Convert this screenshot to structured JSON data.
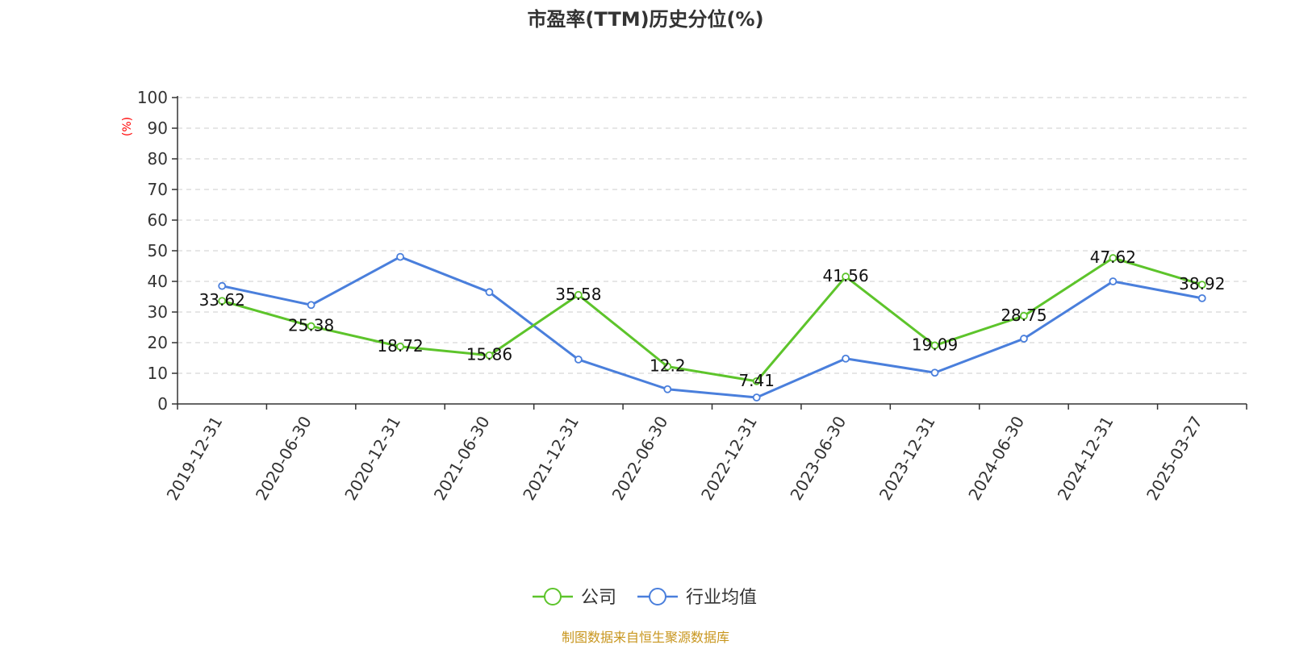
{
  "chart_data": {
    "type": "line",
    "title": "市盈率(TTM)历史分位(%)",
    "ylabel": "(%)",
    "xlabel": "",
    "ylim": [
      0,
      100
    ],
    "yticks": [
      0,
      10,
      20,
      30,
      40,
      50,
      60,
      70,
      80,
      90,
      100
    ],
    "grid": "horizontal dashed",
    "legend_position": "bottom",
    "categories": [
      "2019-12-31",
      "2020-06-30",
      "2020-12-31",
      "2021-06-30",
      "2021-12-31",
      "2022-06-30",
      "2022-12-31",
      "2023-06-30",
      "2023-12-31",
      "2024-06-30",
      "2024-12-31",
      "2025-03-27"
    ],
    "series": [
      {
        "name": "公司",
        "color": "#5dc42b",
        "values": [
          33.62,
          25.38,
          18.72,
          15.86,
          35.58,
          12.2,
          7.41,
          41.56,
          19.09,
          28.75,
          47.62,
          38.92
        ],
        "labels": [
          "33.62",
          "25.38",
          "18.72",
          "15.86",
          "35.58",
          "12.2",
          "7.41",
          "41.56",
          "19.09",
          "28.75",
          "47.62",
          "38.92"
        ]
      },
      {
        "name": "行业均值",
        "color": "#4a7fdc",
        "values": [
          38.5,
          32.3,
          48.0,
          36.5,
          14.5,
          4.8,
          2.1,
          14.8,
          10.2,
          21.3,
          40.0,
          34.5
        ]
      }
    ],
    "source": "制图数据来自恒生聚源数据库"
  }
}
